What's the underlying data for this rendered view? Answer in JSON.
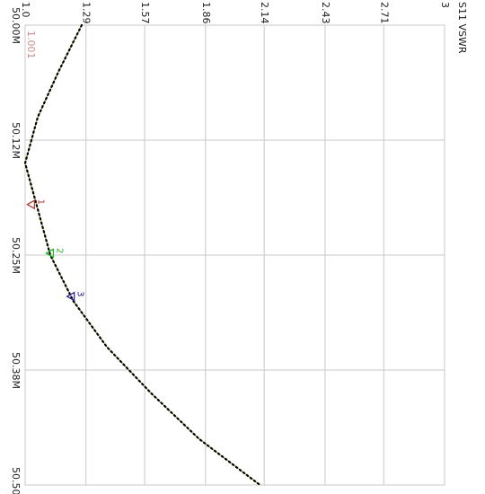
{
  "chart_data": {
    "type": "line",
    "title": "S11 VSWR",
    "min_label": "1.001",
    "trace_color": "#000000",
    "trace_dot_color": "#8b8b00",
    "grid_color": "#c8c8c8",
    "x_axis": {
      "quantity": "frequency",
      "range": [
        50.0,
        50.5
      ],
      "ticks": [
        50.0,
        50.125,
        50.25,
        50.375,
        50.5
      ],
      "tick_labels": [
        "50.00M",
        "50.12M",
        "50.25M",
        "50.38M",
        "50.50M"
      ]
    },
    "y_axis": {
      "quantity": "VSWR",
      "range": [
        1.0,
        3.0
      ],
      "ticks": [
        1.0,
        1.29,
        1.57,
        1.86,
        2.14,
        2.43,
        2.71,
        3.0
      ],
      "tick_labels": [
        "1.0",
        "1.29",
        "1.57",
        "1.86",
        "2.14",
        "2.43",
        "2.71",
        "3"
      ]
    },
    "series": [
      {
        "x": [
          50.0,
          50.05,
          50.1,
          50.15,
          50.2,
          50.25,
          50.3,
          50.35,
          50.4,
          50.45,
          50.5
        ],
        "y": [
          1.27,
          1.16,
          1.06,
          1.0,
          1.06,
          1.12,
          1.23,
          1.39,
          1.6,
          1.83,
          2.12
        ]
      }
    ],
    "markers": [
      {
        "label": "1",
        "x": 50.195,
        "y": 1.01,
        "color": "#b03030"
      },
      {
        "label": "2",
        "x": 50.248,
        "y": 1.1,
        "color": "#20b020"
      },
      {
        "label": "3",
        "x": 50.295,
        "y": 1.2,
        "color": "#202090"
      }
    ]
  }
}
